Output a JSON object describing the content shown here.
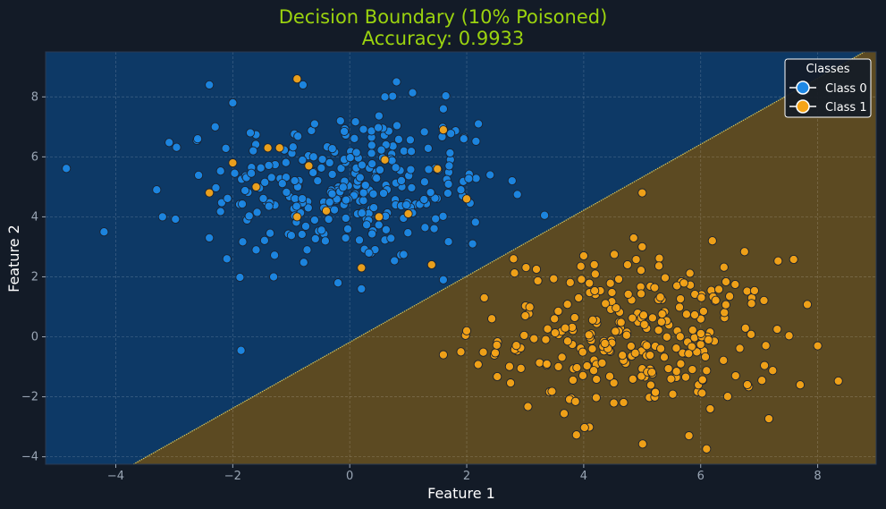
{
  "chart_data": {
    "type": "scatter",
    "title": "Decision Boundary (10% Poisoned)",
    "subtitle": "Accuracy: 0.9933",
    "xlabel": "Feature 1",
    "ylabel": "Feature 2",
    "xlim": [
      -5.2,
      9.0
    ],
    "ylim": [
      -4.25,
      9.5
    ],
    "xticks": [
      -4,
      -2,
      0,
      2,
      4,
      6,
      8
    ],
    "yticks": [
      -4,
      -2,
      0,
      2,
      4,
      6,
      8
    ],
    "grid": true,
    "legend": {
      "title": "Classes",
      "placement": "top-right"
    },
    "decision_boundary": {
      "points": [
        [
          -3.7,
          -4.25
        ],
        [
          8.8,
          9.5
        ]
      ],
      "region_colors": {
        "class_0": "#0d3966",
        "class_1": "#5c4a22"
      },
      "boundary_color": "#d4c35a"
    },
    "series": [
      {
        "name": "Class 0",
        "color": "#1e88e5",
        "cluster": {
          "center": [
            0.0,
            5.0
          ],
          "std": [
            1.2,
            1.3
          ],
          "count": 270
        },
        "points": [
          [
            -4.2,
            3.5
          ],
          [
            -3.3,
            4.9
          ],
          [
            -3.2,
            4.0
          ],
          [
            -2.4,
            8.4
          ],
          [
            -2.0,
            7.8
          ],
          [
            -2.4,
            3.3
          ],
          [
            -2.1,
            2.6
          ],
          [
            -1.6,
            2.9
          ],
          [
            -1.3,
            2.0
          ],
          [
            -0.8,
            8.4
          ],
          [
            -0.6,
            7.1
          ],
          [
            0.8,
            8.5
          ],
          [
            0.6,
            8.0
          ],
          [
            -0.2,
            1.8
          ],
          [
            0.2,
            1.6
          ],
          [
            1.6,
            1.9
          ],
          [
            1.6,
            7.6
          ],
          [
            2.2,
            7.1
          ],
          [
            2.4,
            5.4
          ],
          [
            2.1,
            3.1
          ],
          [
            -2.6,
            6.6
          ],
          [
            -2.3,
            7.0
          ],
          [
            -1.7,
            6.8
          ],
          [
            1.7,
            5.7
          ],
          [
            1.9,
            4.9
          ]
        ]
      },
      {
        "name": "Class 1",
        "color": "#f5a418",
        "cluster": {
          "center": [
            5.0,
            0.0
          ],
          "std": [
            1.2,
            1.3
          ],
          "count": 270
        },
        "points": [
          [
            -0.9,
            8.6
          ],
          [
            -2.0,
            5.8
          ],
          [
            -2.4,
            4.8
          ],
          [
            -1.4,
            6.3
          ],
          [
            -1.6,
            5.0
          ],
          [
            -1.2,
            6.3
          ],
          [
            -0.7,
            5.7
          ],
          [
            -0.4,
            4.2
          ],
          [
            0.2,
            2.3
          ],
          [
            0.5,
            4.0
          ],
          [
            0.6,
            5.9
          ],
          [
            1.4,
            2.4
          ],
          [
            1.5,
            5.6
          ],
          [
            1.6,
            6.9
          ],
          [
            2.0,
            4.6
          ],
          [
            -0.9,
            4.0
          ],
          [
            1.0,
            4.1
          ],
          [
            1.6,
            -0.6
          ],
          [
            1.9,
            -0.5
          ],
          [
            2.0,
            0.2
          ],
          [
            2.3,
            1.3
          ],
          [
            2.8,
            2.6
          ],
          [
            3.0,
            0.7
          ],
          [
            3.5,
            0.6
          ],
          [
            4.0,
            2.7
          ],
          [
            5.0,
            4.8
          ],
          [
            5.0,
            3.0
          ],
          [
            5.8,
            -3.3
          ],
          [
            6.2,
            3.2
          ],
          [
            7.7,
            -1.6
          ],
          [
            8.0,
            -0.3
          ]
        ]
      }
    ]
  }
}
